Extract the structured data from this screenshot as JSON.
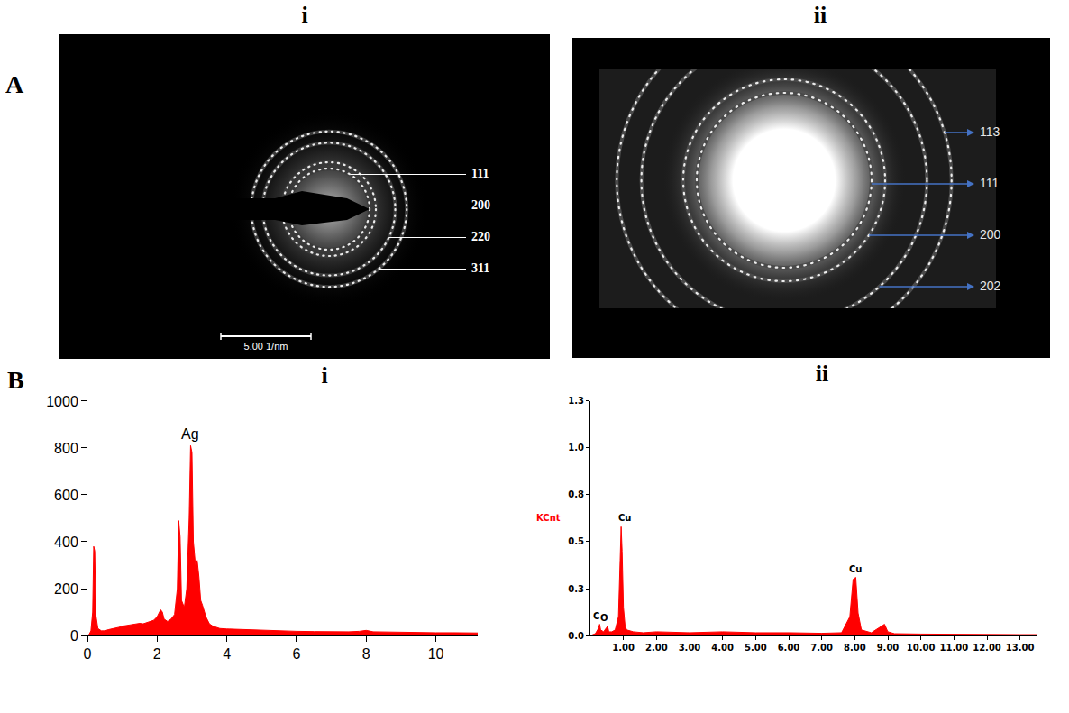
{
  "diffraction_patterns": [
    {
      "row": "A",
      "label": "i",
      "rings": [
        "111",
        "200",
        "220",
        "311"
      ],
      "scale_bar": {
        "label": "5.00 1/nm",
        "value": 5
      }
    },
    {
      "row": "A",
      "label": "ii",
      "rings": [
        "113",
        "111",
        "200",
        "202"
      ]
    }
  ],
  "chart_data": [
    {
      "row": "B",
      "label": "i",
      "type": "area",
      "color": "#ff0000",
      "x": [
        0,
        0.05,
        0.1,
        0.15,
        0.18,
        0.21,
        0.24,
        0.3,
        0.4,
        0.5,
        0.6,
        0.7,
        0.8,
        0.9,
        1.0,
        1.1,
        1.2,
        1.3,
        1.4,
        1.5,
        1.6,
        1.7,
        1.8,
        1.9,
        2.0,
        2.1,
        2.15,
        2.2,
        2.3,
        2.4,
        2.5,
        2.58,
        2.62,
        2.66,
        2.7,
        2.78,
        2.85,
        2.92,
        2.96,
        3.0,
        3.04,
        3.1,
        3.15,
        3.2,
        3.25,
        3.3,
        3.4,
        3.5,
        3.6,
        3.8,
        4.0,
        4.5,
        5.0,
        5.5,
        6.0,
        6.5,
        7.0,
        7.5,
        7.8,
        8.0,
        8.2,
        8.5,
        9.0,
        9.5,
        10.0,
        10.5,
        11.0,
        11.2
      ],
      "values": [
        0,
        5,
        20,
        100,
        380,
        360,
        90,
        30,
        20,
        20,
        25,
        28,
        30,
        35,
        40,
        42,
        45,
        48,
        50,
        52,
        50,
        55,
        60,
        65,
        80,
        110,
        100,
        70,
        60,
        70,
        90,
        200,
        490,
        420,
        150,
        120,
        200,
        500,
        810,
        780,
        400,
        300,
        320,
        250,
        150,
        130,
        80,
        50,
        40,
        30,
        28,
        25,
        22,
        20,
        18,
        17,
        16,
        16,
        18,
        22,
        16,
        15,
        14,
        13,
        12,
        12,
        11,
        11
      ],
      "xlim": [
        0,
        11.2
      ],
      "xticks": [
        0,
        2,
        4,
        6,
        8,
        10
      ],
      "ylim": [
        0,
        1000
      ],
      "yticks": [
        0,
        200,
        400,
        600,
        800,
        1000
      ],
      "annotations": [
        {
          "text": "Ag",
          "x": 2.96
        }
      ]
    },
    {
      "row": "B",
      "label": "ii",
      "type": "area",
      "color": "#ff0000",
      "y_label": "KCnt",
      "x": [
        0,
        0.15,
        0.25,
        0.28,
        0.31,
        0.4,
        0.48,
        0.52,
        0.56,
        0.65,
        0.75,
        0.85,
        0.9,
        0.93,
        0.96,
        1.0,
        1.05,
        1.1,
        1.3,
        1.6,
        2.0,
        3.0,
        4.0,
        5.0,
        6.0,
        7.0,
        7.6,
        7.85,
        7.95,
        8.03,
        8.1,
        8.2,
        8.5,
        8.8,
        8.9,
        9.0,
        9.2,
        10.0,
        11.0,
        12.0,
        13.0,
        13.5
      ],
      "values": [
        0,
        0.01,
        0.04,
        0.06,
        0.03,
        0.02,
        0.04,
        0.05,
        0.02,
        0.02,
        0.03,
        0.1,
        0.4,
        0.58,
        0.45,
        0.15,
        0.05,
        0.03,
        0.02,
        0.015,
        0.02,
        0.015,
        0.02,
        0.015,
        0.015,
        0.012,
        0.015,
        0.1,
        0.3,
        0.31,
        0.12,
        0.03,
        0.015,
        0.05,
        0.06,
        0.02,
        0.01,
        0.008,
        0.006,
        0.005,
        0.005,
        0.005
      ],
      "xlim": [
        0,
        13.5
      ],
      "xticks": [
        {
          "value": 1,
          "label": "1.00"
        },
        {
          "value": 2,
          "label": "2.00"
        },
        {
          "value": 3,
          "label": "3.00"
        },
        {
          "value": 4,
          "label": "4.00"
        },
        {
          "value": 5,
          "label": "5.00"
        },
        {
          "value": 6,
          "label": "6.00"
        },
        {
          "value": 7,
          "label": "7.00"
        },
        {
          "value": 8,
          "label": "8.00"
        },
        {
          "value": 9,
          "label": "9.00"
        },
        {
          "value": 10,
          "label": "10.00"
        },
        {
          "value": 11,
          "label": "11.00"
        },
        {
          "value": 12,
          "label": "12.00"
        },
        {
          "value": 13,
          "label": "13.00"
        }
      ],
      "ylim": [
        0,
        1.25
      ],
      "yticks": [
        {
          "value": 0,
          "label": "0.0"
        },
        {
          "value": 0.25,
          "label": "0.3"
        },
        {
          "value": 0.5,
          "label": "0.5"
        },
        {
          "value": 0.75,
          "label": "0.8"
        },
        {
          "value": 1,
          "label": "1.0"
        },
        {
          "value": 1.25,
          "label": "1.3"
        }
      ],
      "annotations": [
        {
          "text": "C",
          "x": 0.28
        },
        {
          "text": "O",
          "x": 0.52
        },
        {
          "text": "Cu",
          "x": 0.93
        },
        {
          "text": "Cu",
          "x": 8.03
        }
      ]
    }
  ]
}
